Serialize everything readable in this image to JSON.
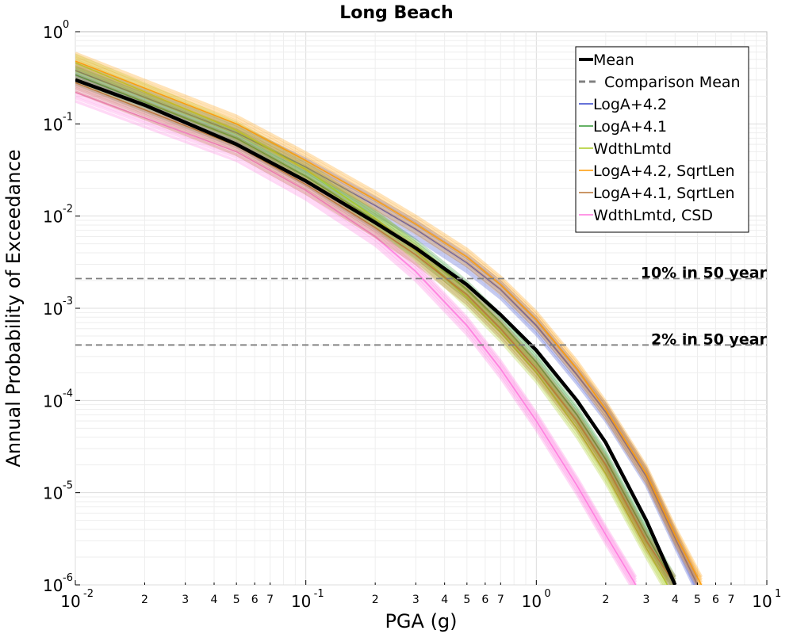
{
  "chart_data": {
    "type": "line",
    "title": "Long Beach",
    "xlabel": "PGA (g)",
    "ylabel": "Annual Probability of Exceedance",
    "x_scale": "log",
    "y_scale": "log",
    "xlim": [
      0.01,
      10
    ],
    "ylim": [
      1e-06,
      1
    ],
    "grid": true,
    "x_major_ticks": [
      {
        "base": "10",
        "exp": "-2"
      },
      {
        "base": "10",
        "exp": "-1"
      },
      {
        "base": "10",
        "exp": "0"
      },
      {
        "base": "10",
        "exp": "1"
      }
    ],
    "y_major_ticks": [
      {
        "base": "10",
        "exp": "0"
      },
      {
        "base": "10",
        "exp": "-1"
      },
      {
        "base": "10",
        "exp": "-2"
      },
      {
        "base": "10",
        "exp": "-3"
      },
      {
        "base": "10",
        "exp": "-4"
      },
      {
        "base": "10",
        "exp": "-5"
      },
      {
        "base": "10",
        "exp": "-6"
      }
    ],
    "x_minor_tick_labels": [
      "2",
      "3",
      "4",
      "5",
      "6",
      "7"
    ],
    "reference_lines": [
      {
        "label": "10% in 50 year",
        "y": 0.0021,
        "color": "#808080"
      },
      {
        "label": "2% in 50 year",
        "y": 0.0004,
        "color": "#808080"
      }
    ],
    "legend_position": "top-right",
    "series": [
      {
        "name": "Mean",
        "color": "#000000",
        "style": "solid",
        "x": [
          0.01,
          0.02,
          0.05,
          0.1,
          0.2,
          0.3,
          0.5,
          0.7,
          1.0,
          1.5,
          2.0,
          3.0,
          4.0
        ],
        "y": [
          0.3,
          0.16,
          0.06,
          0.024,
          0.0085,
          0.0045,
          0.0018,
          0.00085,
          0.00035,
          0.0001,
          3.5e-05,
          5e-06,
          1e-06
        ]
      },
      {
        "name": "Comparison Mean",
        "color": "#808080",
        "style": "dashed",
        "x": [],
        "y": []
      },
      {
        "name": "LogA+4.2",
        "color": "#3344cc",
        "style": "solid",
        "x": [
          0.01,
          0.05,
          0.1,
          0.2,
          0.3,
          0.5,
          0.7,
          1.0,
          1.5,
          2.0,
          3.0,
          4.0,
          5.0
        ],
        "y": [
          0.38,
          0.08,
          0.034,
          0.013,
          0.0072,
          0.0031,
          0.0016,
          0.00065,
          0.00019,
          7.5e-05,
          1.5e-05,
          3.2e-06,
          1e-06
        ]
      },
      {
        "name": "LogA+4.1",
        "color": "#339933",
        "style": "solid",
        "x": [
          0.01,
          0.05,
          0.1,
          0.2,
          0.3,
          0.5,
          0.7,
          1.0,
          1.5,
          2.0,
          3.0,
          4.0
        ],
        "y": [
          0.34,
          0.07,
          0.027,
          0.009,
          0.0045,
          0.0016,
          0.0007,
          0.00026,
          7e-05,
          2.3e-05,
          3.5e-06,
          1e-06
        ]
      },
      {
        "name": "WdthLmtd",
        "color": "#aacc22",
        "style": "solid",
        "x": [
          0.01,
          0.05,
          0.1,
          0.2,
          0.3,
          0.5,
          0.7,
          1.0,
          1.5,
          2.0,
          3.0,
          3.7
        ],
        "y": [
          0.46,
          0.085,
          0.032,
          0.0095,
          0.0042,
          0.0013,
          0.00055,
          0.0002,
          5e-05,
          1.6e-05,
          2.5e-06,
          1e-06
        ]
      },
      {
        "name": "LogA+4.2, SqrtLen",
        "color": "#ff9900",
        "style": "solid",
        "x": [
          0.01,
          0.05,
          0.1,
          0.2,
          0.3,
          0.5,
          0.7,
          1.0,
          1.5,
          2.0,
          3.0,
          4.0,
          5.2
        ],
        "y": [
          0.48,
          0.1,
          0.04,
          0.015,
          0.0082,
          0.0036,
          0.0018,
          0.00075,
          0.00022,
          8e-05,
          1.6e-05,
          3.5e-06,
          1e-06
        ]
      },
      {
        "name": "LogA+4.1, SqrtLen",
        "color": "#b87333",
        "style": "solid",
        "x": [
          0.01,
          0.05,
          0.1,
          0.2,
          0.3,
          0.5,
          0.7,
          1.0,
          1.5,
          2.0,
          3.0,
          4.0
        ],
        "y": [
          0.28,
          0.058,
          0.022,
          0.0075,
          0.0038,
          0.0014,
          0.0006,
          0.00022,
          6e-05,
          2e-05,
          3e-06,
          1e-06
        ]
      },
      {
        "name": "WdthLmtd, CSD",
        "color": "#ff77dd",
        "style": "solid",
        "x": [
          0.01,
          0.05,
          0.1,
          0.2,
          0.3,
          0.5,
          0.7,
          1.0,
          1.5,
          2.0,
          2.7
        ],
        "y": [
          0.22,
          0.05,
          0.019,
          0.006,
          0.0025,
          0.00065,
          0.00022,
          6e-05,
          1.2e-05,
          3.5e-06,
          1e-06
        ]
      }
    ]
  }
}
